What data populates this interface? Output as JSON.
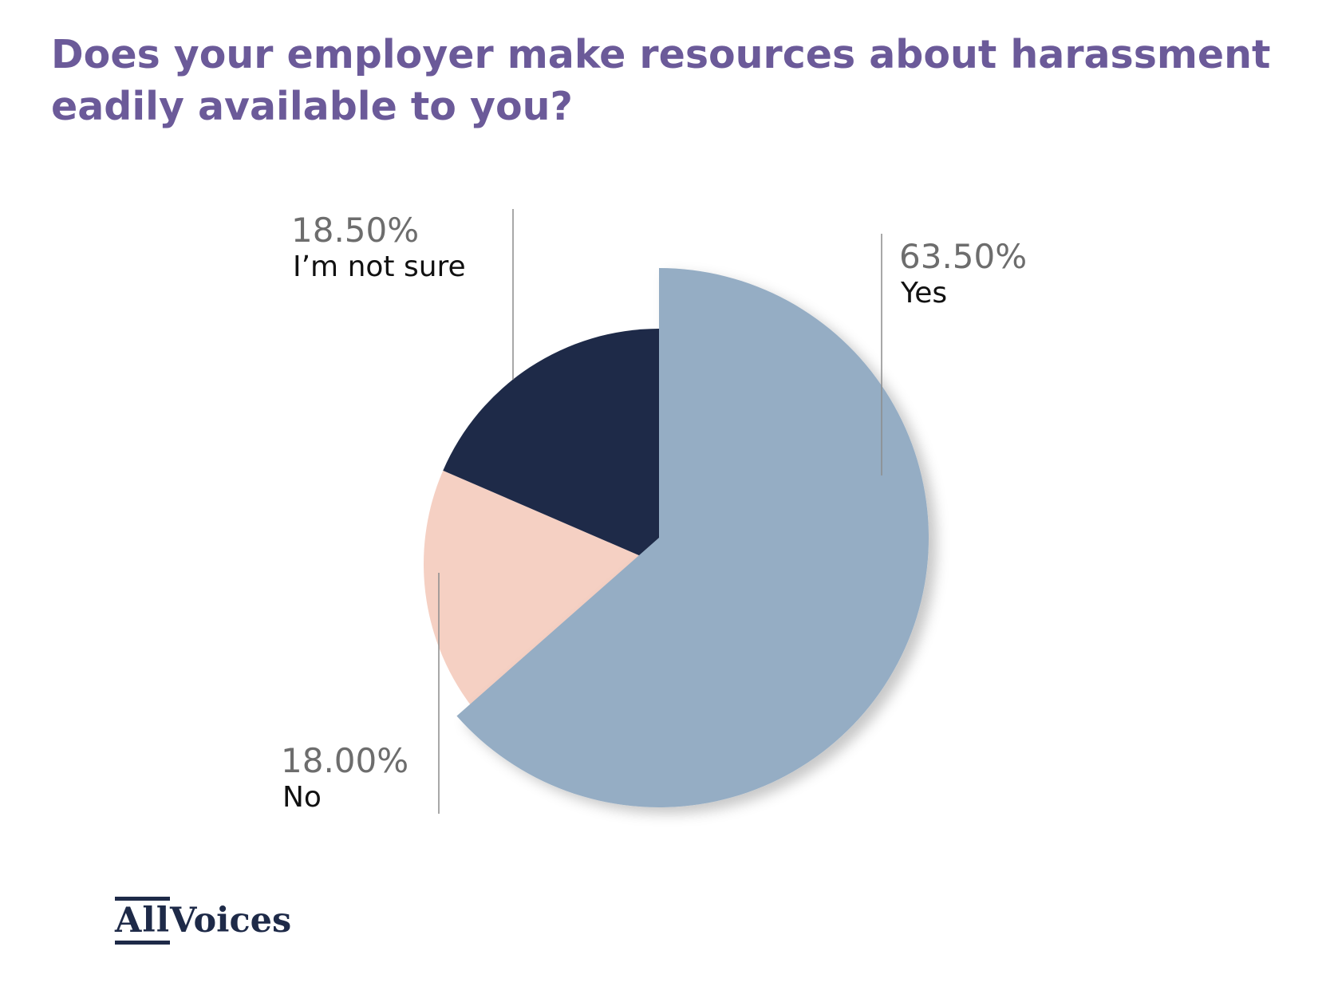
{
  "chart_data": {
    "type": "pie",
    "title_lines": [
      "Does your employer make resources about harassment",
      "eadily available to you?"
    ],
    "slices": [
      {
        "label": "Yes",
        "value": 63.5,
        "display": "63.50%",
        "color": "#95adc4"
      },
      {
        "label": "No",
        "value": 18.0,
        "display": "18.00%",
        "color": "#f5d0c3"
      },
      {
        "label": "I’m not sure",
        "value": 18.5,
        "display": "18.50%",
        "color": "#1e2a48"
      }
    ],
    "start": "12 o'clock",
    "direction": "clockwise",
    "exploded_slice": "Yes"
  },
  "logo": {
    "part1": "All",
    "part2": "Voices"
  }
}
